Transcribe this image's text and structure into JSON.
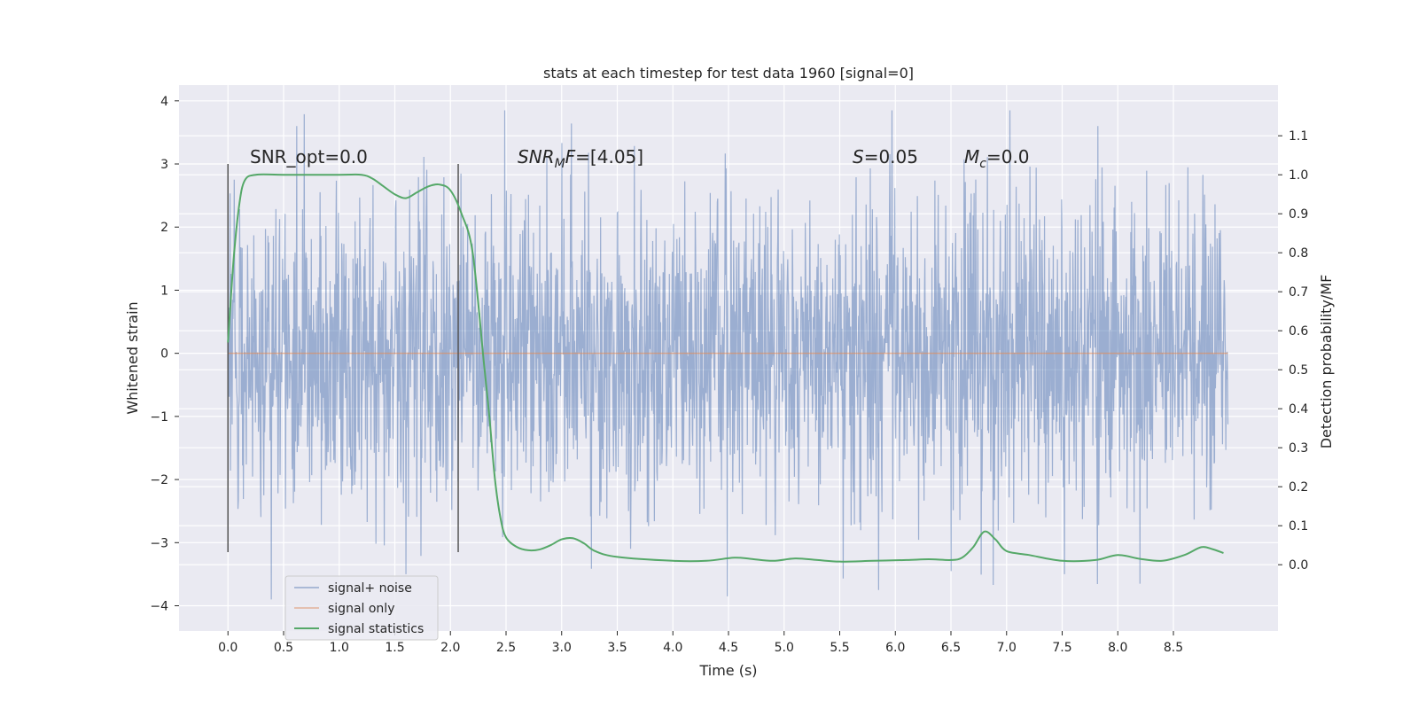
{
  "chart_data": {
    "type": "line",
    "title": "stats at each timestep for test data 1960 [signal=0]",
    "xlabel": "Time (s)",
    "ylabel": "Whitened strain",
    "y2label": "Detection probability/MF",
    "xlim": [
      -0.44,
      9.44
    ],
    "ylim": [
      -4.4,
      4.25
    ],
    "y2lim": [
      -0.17,
      1.23
    ],
    "x_ticks": [
      0.0,
      0.5,
      1.0,
      1.5,
      2.0,
      2.5,
      3.0,
      3.5,
      4.0,
      4.5,
      5.0,
      5.5,
      6.0,
      6.5,
      7.0,
      7.5,
      8.0,
      8.5
    ],
    "x_tick_labels": [
      "0.0",
      "0.5",
      "1.0",
      "1.5",
      "2.0",
      "2.5",
      "3.0",
      "3.5",
      "4.0",
      "4.5",
      "5.0",
      "5.5",
      "6.0",
      "6.5",
      "7.0",
      "7.5",
      "8.0",
      "8.5"
    ],
    "y_ticks": [
      4,
      3,
      2,
      1,
      0,
      -1,
      -2,
      -3,
      -4
    ],
    "y_tick_labels": [
      "4",
      "3",
      "2",
      "1",
      "0",
      "−1",
      "−2",
      "−3",
      "−4"
    ],
    "y2_ticks": [
      1.1,
      1.0,
      0.9,
      0.8,
      0.7,
      0.6,
      0.5,
      0.4,
      0.3,
      0.2,
      0.1,
      0.0
    ],
    "y2_tick_labels": [
      "1.1",
      "1.0",
      "0.9",
      "0.8",
      "0.7",
      "0.6",
      "0.5",
      "0.4",
      "0.3",
      "0.2",
      "0.1",
      "0.0"
    ],
    "annotations": {
      "snr_opt": "SNR_opt=0.0",
      "snr_mf_sym": "SNR",
      "snr_mf_sub": "M",
      "snr_mf_f": "F",
      "snr_mf_val": "=[4.05]",
      "s_sym": "S",
      "s_val": "=0.05",
      "mc_sym": "M",
      "mc_sub": "c",
      "mc_val": "=0.0"
    },
    "vertical_markers": [
      0.0,
      2.07
    ],
    "vertical_marker_range": [
      -3.15,
      3.0
    ],
    "series": [
      {
        "name": "signal+ noise",
        "color": "#4c72b0",
        "kind": "noise",
        "x_range": [
          0.0,
          8.99
        ],
        "typical_amplitude": 1.2,
        "max_abs": 3.85,
        "peaks": [
          {
            "x": 2.49,
            "y": 3.85
          },
          {
            "x": 5.97,
            "y": 3.85
          },
          {
            "x": 0.62,
            "y": 3.6
          },
          {
            "x": 7.82,
            "y": 3.6
          },
          {
            "x": 0.39,
            "y": -3.9
          },
          {
            "x": 5.85,
            "y": -3.75
          },
          {
            "x": 8.2,
            "y": -3.65
          },
          {
            "x": 1.6,
            "y": -3.5
          },
          {
            "x": 7.52,
            "y": -3.5
          },
          {
            "x": 6.5,
            "y": -3.45
          }
        ]
      },
      {
        "name": "signal only",
        "color": "#dd8452",
        "kind": "flat",
        "x": [
          0.0,
          8.99
        ],
        "y": [
          0.0,
          0.0
        ]
      },
      {
        "name": "signal statistics",
        "color": "#55a868",
        "kind": "line",
        "axis": "right",
        "x": [
          0.0,
          0.05,
          0.1,
          0.15,
          0.25,
          0.5,
          1.0,
          1.2,
          1.3,
          1.4,
          1.5,
          1.6,
          1.7,
          1.8,
          1.9,
          2.0,
          2.1,
          2.2,
          2.3,
          2.35,
          2.4,
          2.45,
          2.5,
          2.6,
          2.7,
          2.8,
          2.9,
          3.0,
          3.1,
          3.2,
          3.3,
          3.5,
          4.0,
          4.3,
          4.55,
          4.7,
          4.9,
          5.1,
          5.3,
          5.5,
          5.8,
          6.1,
          6.3,
          6.5,
          6.6,
          6.7,
          6.8,
          6.9,
          7.0,
          7.2,
          7.5,
          7.8,
          8.0,
          8.2,
          8.4,
          8.6,
          8.75,
          8.85,
          8.95
        ],
        "y": [
          0.57,
          0.78,
          0.92,
          0.985,
          1.0,
          1.0,
          1.0,
          1.0,
          0.99,
          0.97,
          0.95,
          0.94,
          0.955,
          0.97,
          0.975,
          0.96,
          0.9,
          0.8,
          0.52,
          0.38,
          0.22,
          0.12,
          0.07,
          0.045,
          0.037,
          0.039,
          0.05,
          0.065,
          0.068,
          0.055,
          0.035,
          0.02,
          0.01,
          0.01,
          0.018,
          0.015,
          0.01,
          0.016,
          0.012,
          0.008,
          0.01,
          0.012,
          0.014,
          0.012,
          0.018,
          0.045,
          0.085,
          0.065,
          0.035,
          0.025,
          0.01,
          0.012,
          0.025,
          0.015,
          0.01,
          0.025,
          0.045,
          0.04,
          0.03
        ]
      }
    ],
    "legend": {
      "placement": "lower-left",
      "entries": [
        "signal+ noise",
        "signal only",
        "signal statistics"
      ]
    }
  }
}
